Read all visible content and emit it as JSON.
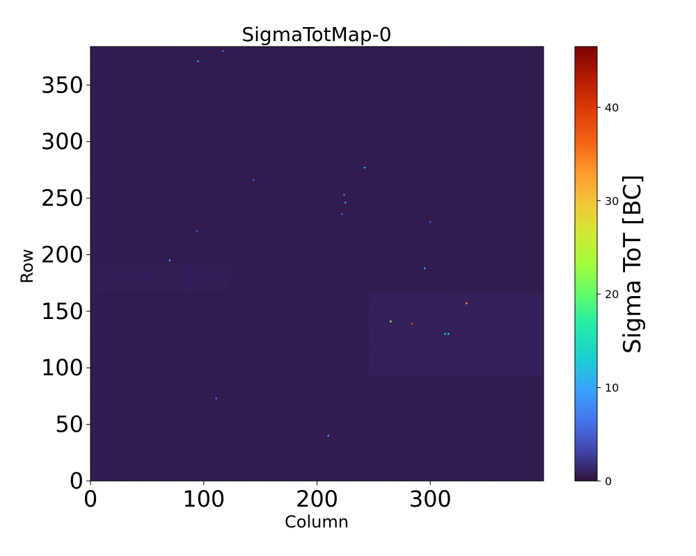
{
  "chart_data": {
    "type": "heatmap",
    "title": "SigmaTotMap-0",
    "xlabel": "Column",
    "ylabel": "Row",
    "xlim": [
      0,
      400
    ],
    "ylim": [
      0,
      384
    ],
    "x_ticks": [
      0,
      100,
      200,
      300
    ],
    "y_ticks": [
      0,
      50,
      100,
      150,
      200,
      250,
      300,
      350
    ],
    "colorbar": {
      "label": "Sigma ToT [BC]",
      "range": [
        0,
        46.5
      ],
      "ticks": [
        0,
        10,
        20,
        30,
        40
      ],
      "colormap": "turbo"
    },
    "background_value": 1,
    "hot_pixels": [
      {
        "x": 95,
        "y": 371,
        "v": 9
      },
      {
        "x": 117,
        "y": 380,
        "v": 6
      },
      {
        "x": 242,
        "y": 277,
        "v": 11
      },
      {
        "x": 224,
        "y": 253,
        "v": 7
      },
      {
        "x": 225,
        "y": 246,
        "v": 9
      },
      {
        "x": 222,
        "y": 236,
        "v": 5
      },
      {
        "x": 94,
        "y": 221,
        "v": 5
      },
      {
        "x": 70,
        "y": 195,
        "v": 11
      },
      {
        "x": 295,
        "y": 188,
        "v": 10
      },
      {
        "x": 332,
        "y": 157,
        "v": 33
      },
      {
        "x": 265,
        "y": 141,
        "v": 22
      },
      {
        "x": 284,
        "y": 139,
        "v": 38
      },
      {
        "x": 313,
        "y": 130,
        "v": 14
      },
      {
        "x": 316,
        "y": 130,
        "v": 16
      },
      {
        "x": 111,
        "y": 73,
        "v": 7
      },
      {
        "x": 210,
        "y": 40,
        "v": 10
      },
      {
        "x": 144,
        "y": 266,
        "v": 5
      },
      {
        "x": 300,
        "y": 229,
        "v": 5
      }
    ]
  }
}
